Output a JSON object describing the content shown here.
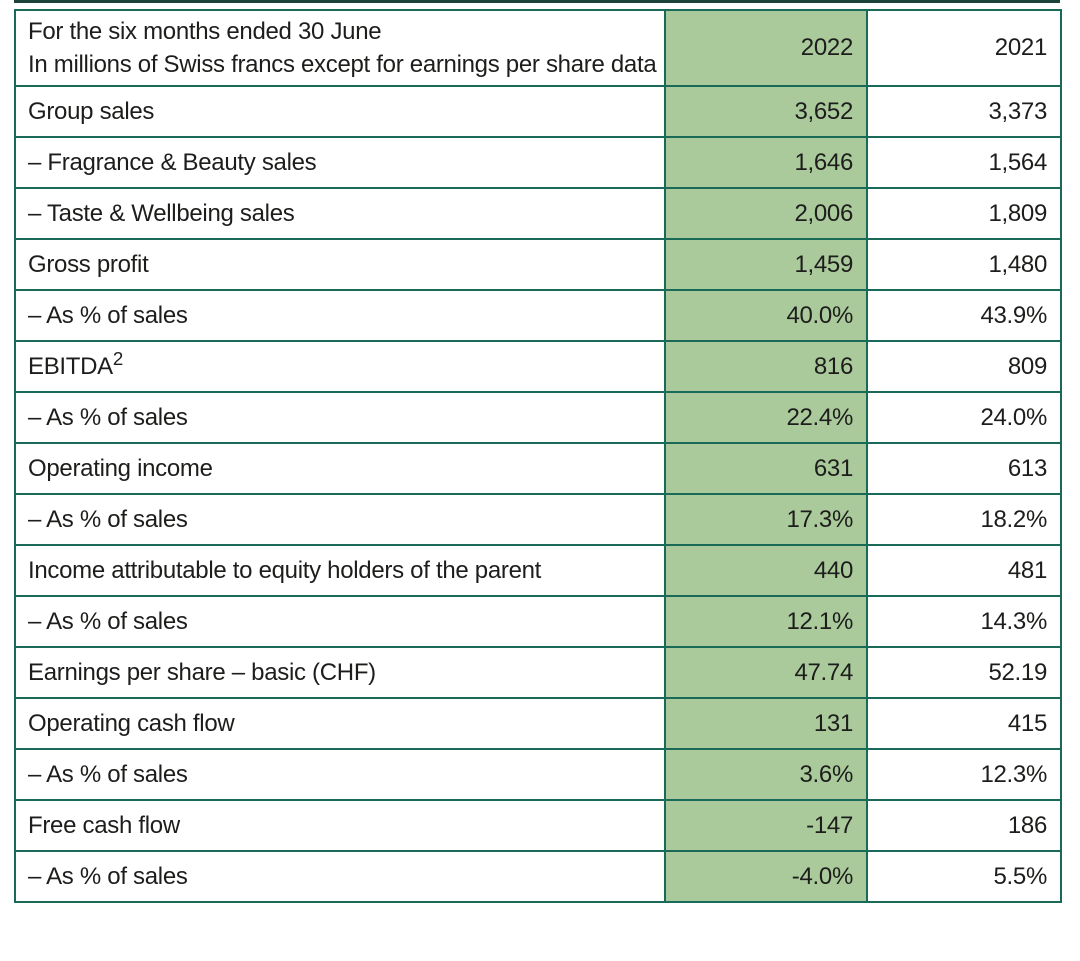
{
  "table": {
    "colors": {
      "border": "#1a6a5a",
      "highlight": "#aaca9c",
      "top_rule": "#1d443c",
      "text": "#1d1d1b",
      "background": "#ffffff"
    },
    "header": {
      "title_line1": "For the six months ended 30 June",
      "title_line2": "In millions of Swiss francs except for earnings per share data",
      "year_current": "2022",
      "year_prior": "2021"
    },
    "rows": [
      {
        "label": "Group sales",
        "v2022": "3,652",
        "v2021": "3,373"
      },
      {
        "label": "– Fragrance & Beauty sales",
        "v2022": "1,646",
        "v2021": "1,564"
      },
      {
        "label": "– Taste & Wellbeing sales",
        "v2022": "2,006",
        "v2021": "1,809"
      },
      {
        "label": "Gross profit",
        "v2022": "1,459",
        "v2021": "1,480"
      },
      {
        "label": "– As % of sales",
        "v2022": "40.0%",
        "v2021": "43.9%"
      },
      {
        "label": "EBITDA",
        "label_sup": "2",
        "v2022": "816",
        "v2021": "809"
      },
      {
        "label": "– As % of sales",
        "v2022": "22.4%",
        "v2021": "24.0%"
      },
      {
        "label": "Operating income",
        "v2022": "631",
        "v2021": "613"
      },
      {
        "label": "– As % of sales",
        "v2022": "17.3%",
        "v2021": "18.2%"
      },
      {
        "label": "Income attributable to equity holders of the parent",
        "v2022": "440",
        "v2021": "481"
      },
      {
        "label": "– As % of sales",
        "v2022": "12.1%",
        "v2021": "14.3%"
      },
      {
        "label": "Earnings per share – basic (CHF)",
        "v2022": "47.74",
        "v2021": "52.19"
      },
      {
        "label": "Operating cash flow",
        "v2022": "131",
        "v2021": "415"
      },
      {
        "label": "– As % of sales",
        "v2022": "3.6%",
        "v2021": "12.3%"
      },
      {
        "label": "Free cash flow",
        "v2022": "-147",
        "v2021": "186"
      },
      {
        "label": "– As % of sales",
        "v2022": "-4.0%",
        "v2021": "5.5%"
      }
    ]
  }
}
